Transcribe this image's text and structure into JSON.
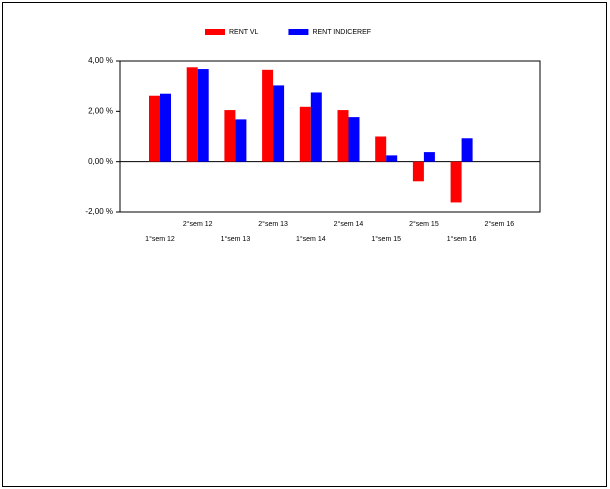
{
  "chart_data": {
    "type": "bar",
    "categories": [
      "1°sem 12",
      "2°sem 12",
      "1°sem 13",
      "2°sem 13",
      "1°sem 14",
      "2°sem 14",
      "1°sem 15",
      "2°sem 15",
      "1°sem 16",
      "2°sem 16"
    ],
    "series": [
      {
        "name": "RENT VL",
        "color": "#ff0000",
        "values": [
          2.62,
          3.75,
          2.05,
          3.65,
          2.18,
          2.05,
          1.0,
          -0.78,
          -1.62,
          null
        ]
      },
      {
        "name": "RENT INDICEREF",
        "color": "#0000ff",
        "values": [
          2.7,
          3.68,
          1.68,
          3.03,
          2.75,
          1.77,
          0.25,
          0.38,
          0.93,
          null
        ]
      }
    ],
    "ylim": [
      -2,
      4
    ],
    "yticks": [
      {
        "value": -2,
        "label": "-2,00 %"
      },
      {
        "value": 0,
        "label": "0,00 %"
      },
      {
        "value": 2,
        "label": "2,00 %"
      },
      {
        "value": 4,
        "label": "4,00 %"
      }
    ],
    "legend": "top"
  }
}
